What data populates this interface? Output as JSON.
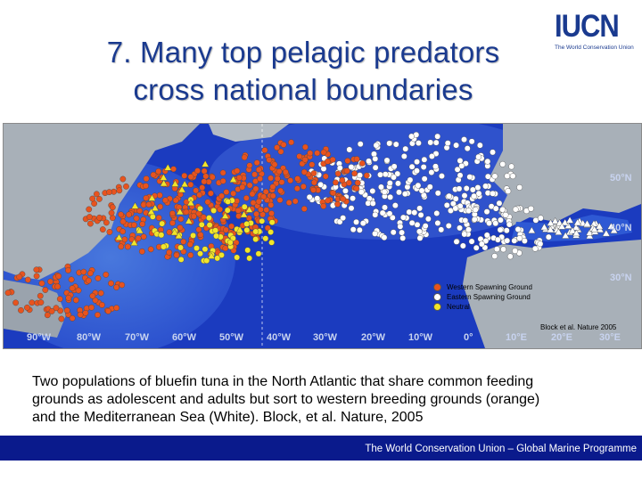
{
  "slide": {
    "title_lines": [
      "7. Many top pelagic predators",
      "cross national boundaries"
    ],
    "caption_lines": [
      "Two populations of bluefin tuna in the North Atlantic that share common feeding",
      "grounds as adolescent and adults but sort to western breeding grounds (orange)",
      "and the Mediterranean Sea (White). Block, et al. Nature, 2005"
    ],
    "footer": "The World Conservation Union – Global Marine Programme"
  },
  "logo": {
    "name": "IUCN",
    "subtitle": "The World Conservation Union",
    "icon": "iucn-logo"
  },
  "map": {
    "legend": [
      {
        "label": "Western Spawning Ground",
        "color": "#e8531e"
      },
      {
        "label": "Eastern Spawning Ground",
        "color": "#ffffff"
      },
      {
        "label": "Neutral",
        "color": "#f2e52a"
      }
    ],
    "credit": "Block et al. Nature 2005",
    "lat_labels": [
      "50°N",
      "40°N",
      "30°N"
    ],
    "lon_labels": [
      "90°W",
      "80°W",
      "70°W",
      "60°W",
      "50°W",
      "40°W",
      "30°W",
      "20°W",
      "10°W",
      "0°",
      "10°E",
      "20°E",
      "30°E"
    ],
    "colors": {
      "ocean_deep": "#1b3bbf",
      "ocean_shelf": "#4f86e3",
      "land": "#a8b0b8",
      "western": "#e8531e",
      "eastern": "#ffffff",
      "neutral": "#f2e52a"
    }
  }
}
